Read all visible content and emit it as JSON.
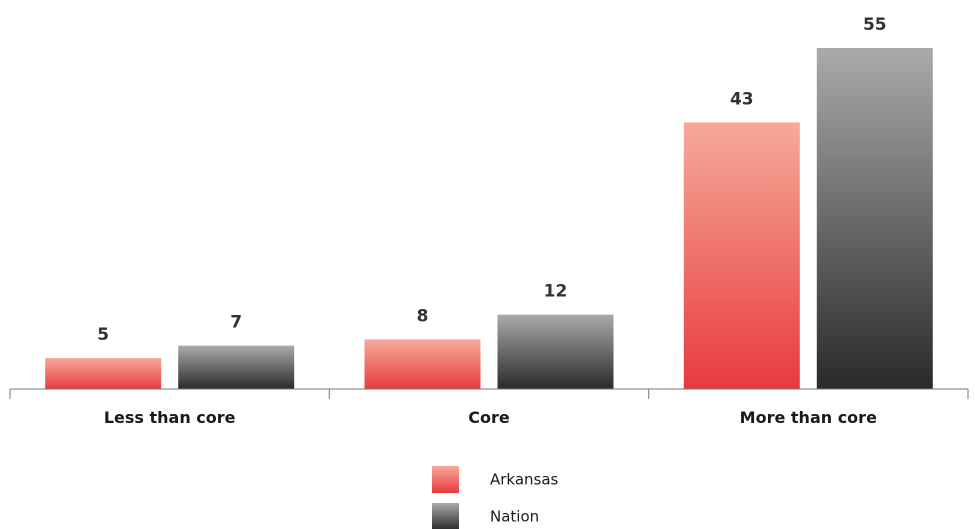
{
  "chart_data": {
    "type": "bar",
    "categories": [
      "Less than core",
      "Core",
      "More than core"
    ],
    "series": [
      {
        "name": "Arkansas",
        "values": [
          5,
          8,
          43
        ],
        "color_top": "#f6aa9a",
        "color_bottom": "#e83a3e"
      },
      {
        "name": "Nation",
        "values": [
          7,
          12,
          55
        ],
        "color_top": "#aaaaad",
        "color_bottom": "#2a2a2a"
      }
    ],
    "title": "",
    "xlabel": "",
    "ylabel": "",
    "ylim": [
      0,
      55
    ],
    "grid": false,
    "legend": "bottom-center",
    "data_labels": true
  }
}
